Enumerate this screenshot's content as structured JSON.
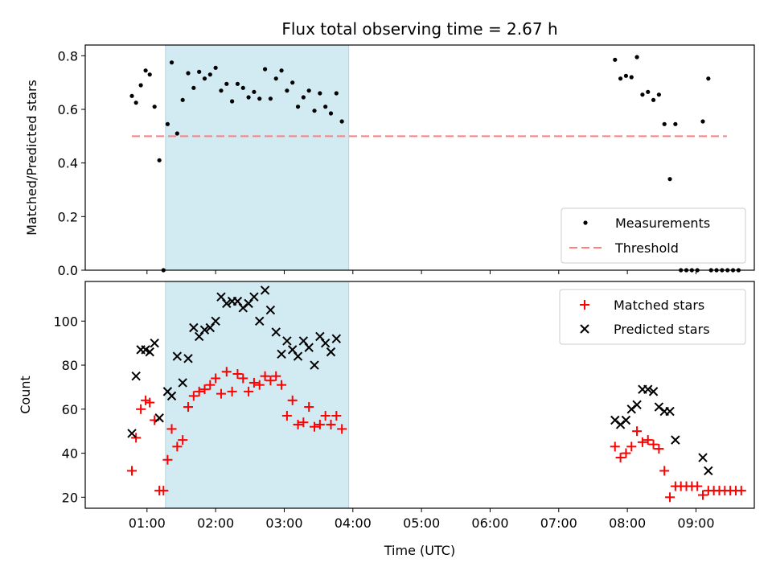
{
  "chart_data": {
    "title": "Flux total observing time = 2.67 h",
    "xlabel": "Time (UTC)",
    "x_ticks": [
      "01:00",
      "02:00",
      "03:00",
      "04:00",
      "05:00",
      "06:00",
      "07:00",
      "08:00",
      "09:00"
    ],
    "x_tick_hours": [
      1,
      2,
      3,
      4,
      5,
      6,
      7,
      8,
      9
    ],
    "xlim_hours": [
      0.1,
      9.85
    ],
    "shaded_span_hours": [
      1.27,
      3.94
    ],
    "colors": {
      "shade": "#add8e6",
      "threshold": "#ff7f7f",
      "matched": "#ff0000",
      "predicted": "#000000",
      "measurement": "#000000"
    },
    "panels": [
      {
        "type": "scatter",
        "ylabel": "Matched/Predicted stars",
        "ylim": [
          0,
          0.84
        ],
        "yticks": [
          0.0,
          0.2,
          0.4,
          0.6,
          0.8
        ],
        "y_tick_labels": [
          "0.0",
          "0.2",
          "0.4",
          "0.6",
          "0.8"
        ],
        "legend_position": "lower-right",
        "threshold": {
          "name": "Threshold",
          "value": 0.5,
          "x_range_hours": [
            0.78,
            9.45
          ]
        },
        "series": [
          {
            "name": "Measurements",
            "marker": "dot",
            "points": [
              [
                0.78,
                0.65
              ],
              [
                0.84,
                0.625
              ],
              [
                0.91,
                0.69
              ],
              [
                0.98,
                0.745
              ],
              [
                1.04,
                0.73
              ],
              [
                1.11,
                0.61
              ],
              [
                1.18,
                0.41
              ],
              [
                1.24,
                0.0
              ],
              [
                1.3,
                0.545
              ],
              [
                1.36,
                0.775
              ],
              [
                1.44,
                0.51
              ],
              [
                1.52,
                0.635
              ],
              [
                1.6,
                0.735
              ],
              [
                1.68,
                0.68
              ],
              [
                1.76,
                0.74
              ],
              [
                1.84,
                0.715
              ],
              [
                1.92,
                0.73
              ],
              [
                2.0,
                0.755
              ],
              [
                2.08,
                0.67
              ],
              [
                2.16,
                0.695
              ],
              [
                2.24,
                0.63
              ],
              [
                2.32,
                0.695
              ],
              [
                2.4,
                0.68
              ],
              [
                2.48,
                0.645
              ],
              [
                2.56,
                0.665
              ],
              [
                2.64,
                0.64
              ],
              [
                2.72,
                0.75
              ],
              [
                2.8,
                0.64
              ],
              [
                2.88,
                0.715
              ],
              [
                2.96,
                0.745
              ],
              [
                3.04,
                0.67
              ],
              [
                3.12,
                0.7
              ],
              [
                3.2,
                0.61
              ],
              [
                3.28,
                0.645
              ],
              [
                3.36,
                0.67
              ],
              [
                3.44,
                0.595
              ],
              [
                3.52,
                0.66
              ],
              [
                3.6,
                0.61
              ],
              [
                3.68,
                0.585
              ],
              [
                3.76,
                0.66
              ],
              [
                3.84,
                0.555
              ],
              [
                7.82,
                0.785
              ],
              [
                7.9,
                0.715
              ],
              [
                7.98,
                0.725
              ],
              [
                8.06,
                0.72
              ],
              [
                8.14,
                0.795
              ],
              [
                8.22,
                0.655
              ],
              [
                8.3,
                0.665
              ],
              [
                8.38,
                0.635
              ],
              [
                8.46,
                0.655
              ],
              [
                8.54,
                0.545
              ],
              [
                8.62,
                0.34
              ],
              [
                8.7,
                0.545
              ],
              [
                8.78,
                0.0
              ],
              [
                8.86,
                0.0
              ],
              [
                8.94,
                0.0
              ],
              [
                9.02,
                0.0
              ],
              [
                9.1,
                0.555
              ],
              [
                9.18,
                0.715
              ],
              [
                9.22,
                0.0
              ],
              [
                9.3,
                0.0
              ],
              [
                9.38,
                0.0
              ],
              [
                9.46,
                0.0
              ],
              [
                9.54,
                0.0
              ],
              [
                9.62,
                0.0
              ]
            ]
          }
        ]
      },
      {
        "type": "scatter",
        "ylabel": "Count",
        "ylim": [
          15,
          118
        ],
        "yticks": [
          20,
          40,
          60,
          80,
          100
        ],
        "y_tick_labels": [
          "20",
          "40",
          "60",
          "80",
          "100"
        ],
        "legend_position": "upper-right",
        "series": [
          {
            "name": "Matched stars",
            "marker": "plus",
            "points": [
              [
                0.78,
                32
              ],
              [
                0.84,
                47
              ],
              [
                0.91,
                60
              ],
              [
                0.98,
                64
              ],
              [
                1.04,
                63
              ],
              [
                1.11,
                55
              ],
              [
                1.18,
                23
              ],
              [
                1.24,
                23
              ],
              [
                1.3,
                37
              ],
              [
                1.36,
                51
              ],
              [
                1.44,
                43
              ],
              [
                1.52,
                46
              ],
              [
                1.6,
                61
              ],
              [
                1.68,
                66
              ],
              [
                1.76,
                68
              ],
              [
                1.84,
                69
              ],
              [
                1.92,
                71
              ],
              [
                2.0,
                74
              ],
              [
                2.08,
                67
              ],
              [
                2.16,
                77
              ],
              [
                2.24,
                68
              ],
              [
                2.32,
                76
              ],
              [
                2.4,
                74
              ],
              [
                2.48,
                68
              ],
              [
                2.56,
                72
              ],
              [
                2.64,
                71
              ],
              [
                2.72,
                75
              ],
              [
                2.8,
                73
              ],
              [
                2.88,
                75
              ],
              [
                2.96,
                71
              ],
              [
                3.04,
                57
              ],
              [
                3.12,
                64
              ],
              [
                3.2,
                53
              ],
              [
                3.28,
                54
              ],
              [
                3.36,
                61
              ],
              [
                3.44,
                52
              ],
              [
                3.52,
                53
              ],
              [
                3.6,
                57
              ],
              [
                3.68,
                53
              ],
              [
                3.76,
                57
              ],
              [
                3.84,
                51
              ],
              [
                7.82,
                43
              ],
              [
                7.9,
                38
              ],
              [
                7.98,
                40
              ],
              [
                8.06,
                43
              ],
              [
                8.14,
                50
              ],
              [
                8.22,
                45
              ],
              [
                8.3,
                46
              ],
              [
                8.38,
                44
              ],
              [
                8.46,
                42
              ],
              [
                8.54,
                32
              ],
              [
                8.62,
                20
              ],
              [
                8.7,
                25
              ],
              [
                8.78,
                25
              ],
              [
                8.86,
                25
              ],
              [
                8.94,
                25
              ],
              [
                9.02,
                25
              ],
              [
                9.1,
                21
              ],
              [
                9.18,
                23
              ],
              [
                9.26,
                23
              ],
              [
                9.34,
                23
              ],
              [
                9.42,
                23
              ],
              [
                9.5,
                23
              ],
              [
                9.58,
                23
              ],
              [
                9.66,
                23
              ]
            ]
          },
          {
            "name": "Predicted stars",
            "marker": "x",
            "points": [
              [
                0.78,
                49
              ],
              [
                0.84,
                75
              ],
              [
                0.91,
                87
              ],
              [
                0.98,
                87
              ],
              [
                1.04,
                86
              ],
              [
                1.11,
                90
              ],
              [
                1.18,
                56
              ],
              [
                1.3,
                68
              ],
              [
                1.36,
                66
              ],
              [
                1.44,
                84
              ],
              [
                1.52,
                72
              ],
              [
                1.6,
                83
              ],
              [
                1.68,
                97
              ],
              [
                1.76,
                93
              ],
              [
                1.84,
                96
              ],
              [
                1.92,
                97
              ],
              [
                2.0,
                100
              ],
              [
                2.08,
                111
              ],
              [
                2.16,
                108
              ],
              [
                2.24,
                109
              ],
              [
                2.32,
                109
              ],
              [
                2.4,
                106
              ],
              [
                2.48,
                108
              ],
              [
                2.56,
                111
              ],
              [
                2.64,
                100
              ],
              [
                2.72,
                114
              ],
              [
                2.8,
                105
              ],
              [
                2.88,
                95
              ],
              [
                2.96,
                85
              ],
              [
                3.04,
                91
              ],
              [
                3.12,
                87
              ],
              [
                3.2,
                84
              ],
              [
                3.28,
                91
              ],
              [
                3.36,
                88
              ],
              [
                3.44,
                80
              ],
              [
                3.52,
                93
              ],
              [
                3.6,
                90
              ],
              [
                3.68,
                86
              ],
              [
                3.76,
                92
              ],
              [
                7.82,
                55
              ],
              [
                7.9,
                53
              ],
              [
                7.98,
                55
              ],
              [
                8.06,
                60
              ],
              [
                8.14,
                62
              ],
              [
                8.22,
                69
              ],
              [
                8.3,
                69
              ],
              [
                8.38,
                68
              ],
              [
                8.46,
                61
              ],
              [
                8.54,
                59
              ],
              [
                8.62,
                59
              ],
              [
                8.7,
                46
              ],
              [
                9.1,
                38
              ],
              [
                9.18,
                32
              ]
            ]
          }
        ]
      }
    ]
  }
}
